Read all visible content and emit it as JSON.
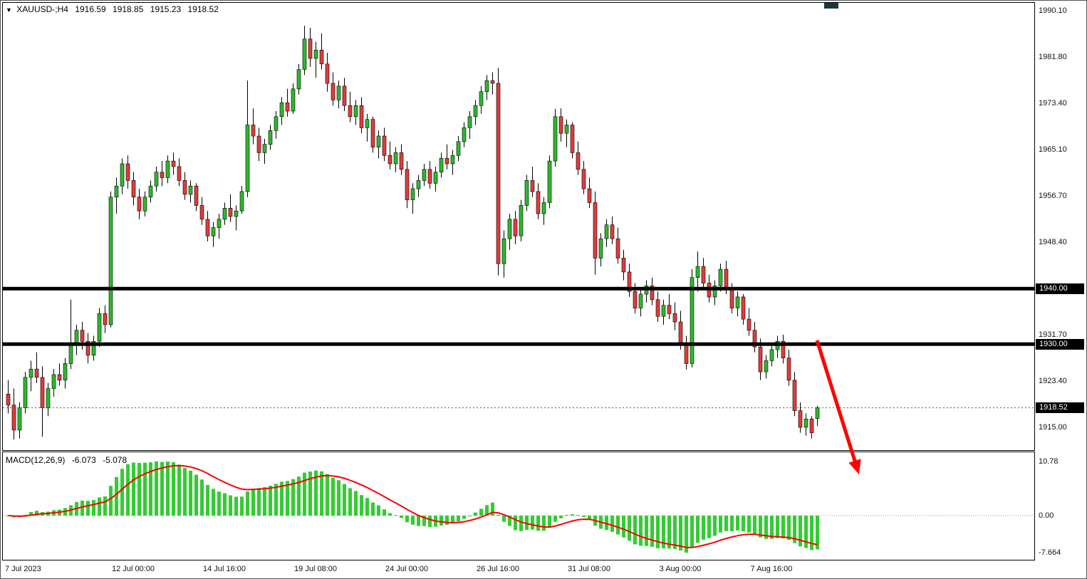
{
  "window": {
    "title_icon": "▼",
    "symbol_timeframe": "XAUUSD-;H4",
    "open": "1916.59",
    "high": "1918.85",
    "low": "1915.23",
    "close": "1918.52"
  },
  "colors": {
    "up": "#2eb82e",
    "down": "#e03c3c",
    "wick": "#000000",
    "level_line": "#000000",
    "macd_bar": "#33cc33",
    "macd_signal": "#ff0000",
    "arrow": "#ff0000",
    "tag_bg": "#000000",
    "tag_text": "#ffffff"
  },
  "y_axis": {
    "ticks": [
      "1990.10",
      "1981.80",
      "1973.40",
      "1965.10",
      "1956.70",
      "1948.40",
      "1931.70",
      "1923.40",
      "1915.00"
    ]
  },
  "price_tags": {
    "level1": "1940.00",
    "level2": "1930.00",
    "current": "1918.52"
  },
  "macd_panel": {
    "label": "MACD(12,26,9)",
    "value_main": "-6.073",
    "value_signal": "-5.078",
    "ticks": [
      "10.78",
      "0.00",
      "-7.664"
    ]
  },
  "chart_data": {
    "type": "candlestick",
    "symbol": "XAUUSD-",
    "timeframe": "H4",
    "title": "XAUUSD-;H4",
    "ohlc_current": {
      "open": 1916.59,
      "high": 1918.85,
      "low": 1915.23,
      "close": 1918.52
    },
    "y_range": {
      "top_tick": 1990.1,
      "bottom_tick": 1915.0
    },
    "horizontal_levels": [
      1940.0,
      1930.0
    ],
    "current_price": 1918.52,
    "x_tick_labels": [
      "7 Jul 2023",
      "12 Jul 00:00",
      "14 Jul 16:00",
      "19 Jul 08:00",
      "24 Jul 00:00",
      "26 Jul 16:00",
      "31 Jul 08:00",
      "3 Aug 00:00",
      "7 Aug 16:00"
    ],
    "candles": [
      [
        1921,
        1923.5,
        1917.5,
        1919
      ],
      [
        1919,
        1922,
        1912.8,
        1914.5
      ],
      [
        1914.5,
        1919.5,
        1913,
        1918.5
      ],
      [
        1918.5,
        1925,
        1917.5,
        1924
      ],
      [
        1924,
        1927,
        1921.5,
        1925.5
      ],
      [
        1925.5,
        1928.5,
        1923,
        1924
      ],
      [
        1924,
        1926,
        1913.3,
        1918.5
      ],
      [
        1918.5,
        1923,
        1917,
        1922
      ],
      [
        1922,
        1925.5,
        1920.5,
        1924.5
      ],
      [
        1924.5,
        1926.5,
        1922.5,
        1923.5
      ],
      [
        1923.5,
        1927.5,
        1922,
        1926.5
      ],
      [
        1926.5,
        1938,
        1925.5,
        1930
      ],
      [
        1930,
        1933.5,
        1928,
        1932.5
      ],
      [
        1932.5,
        1934,
        1929,
        1930.5
      ],
      [
        1930.5,
        1932,
        1926.5,
        1928
      ],
      [
        1928,
        1931.5,
        1927,
        1930.5
      ],
      [
        1930.5,
        1936.5,
        1929.5,
        1935.5
      ],
      [
        1935.5,
        1937,
        1932,
        1933.5
      ],
      [
        1933.5,
        1957.5,
        1933,
        1956.5
      ],
      [
        1956.5,
        1960,
        1953.5,
        1958.5
      ],
      [
        1958.5,
        1963.5,
        1957,
        1962.5
      ],
      [
        1962.5,
        1964,
        1958,
        1959.5
      ],
      [
        1959.5,
        1961,
        1955,
        1956.5
      ],
      [
        1956.5,
        1958,
        1952.5,
        1954
      ],
      [
        1954,
        1957.5,
        1953,
        1956.5
      ],
      [
        1956.5,
        1959.5,
        1955.5,
        1958.5
      ],
      [
        1958.5,
        1962,
        1957.5,
        1961
      ],
      [
        1961,
        1963,
        1958.5,
        1960
      ],
      [
        1960,
        1964,
        1959,
        1963
      ],
      [
        1963,
        1964.5,
        1960.5,
        1962
      ],
      [
        1962,
        1963.5,
        1958.5,
        1959.5
      ],
      [
        1959.5,
        1961,
        1956,
        1957
      ],
      [
        1957,
        1959.5,
        1955.5,
        1958.5
      ],
      [
        1958.5,
        1959,
        1954,
        1955
      ],
      [
        1955,
        1956.5,
        1951.5,
        1952.5
      ],
      [
        1952.5,
        1954,
        1948.5,
        1949.5
      ],
      [
        1949.5,
        1952,
        1947.5,
        1951
      ],
      [
        1951,
        1953.5,
        1949,
        1952.5
      ],
      [
        1952.5,
        1955.5,
        1951.5,
        1954.5
      ],
      [
        1954.5,
        1957,
        1952,
        1953
      ],
      [
        1953,
        1955,
        1950.5,
        1954
      ],
      [
        1954,
        1958.5,
        1953.5,
        1957.5
      ],
      [
        1957.5,
        1977.5,
        1956.5,
        1969.5
      ],
      [
        1969.5,
        1972.5,
        1966,
        1967.5
      ],
      [
        1967.5,
        1969,
        1963,
        1964.5
      ],
      [
        1964.5,
        1967,
        1962.5,
        1966
      ],
      [
        1966,
        1969.5,
        1965,
        1968.5
      ],
      [
        1968.5,
        1972,
        1967,
        1971
      ],
      [
        1971,
        1974.5,
        1969.5,
        1973.5
      ],
      [
        1973.5,
        1976,
        1971,
        1972
      ],
      [
        1972,
        1977,
        1971.5,
        1976
      ],
      [
        1976,
        1980.5,
        1975,
        1979.5
      ],
      [
        1979.5,
        1987.4,
        1978.5,
        1985
      ],
      [
        1985,
        1987,
        1980,
        1981.5
      ],
      [
        1981.5,
        1984.5,
        1978,
        1983
      ],
      [
        1983,
        1986,
        1979.5,
        1980.5
      ],
      [
        1980.5,
        1982.5,
        1975.5,
        1977
      ],
      [
        1977,
        1979,
        1973,
        1974
      ],
      [
        1974,
        1977.5,
        1972.5,
        1976.5
      ],
      [
        1976.5,
        1978,
        1972,
        1973
      ],
      [
        1973,
        1975.5,
        1970,
        1971
      ],
      [
        1971,
        1974,
        1969.5,
        1973
      ],
      [
        1973,
        1974.5,
        1968,
        1969
      ],
      [
        1969,
        1971.5,
        1966.5,
        1970.5
      ],
      [
        1970.5,
        1971,
        1964.5,
        1965.5
      ],
      [
        1965.5,
        1968.5,
        1963.5,
        1967.5
      ],
      [
        1967.5,
        1969,
        1963,
        1964
      ],
      [
        1964,
        1966.5,
        1961.5,
        1962.5
      ],
      [
        1962.5,
        1965.5,
        1961,
        1964.5
      ],
      [
        1964.5,
        1966,
        1960.5,
        1961.5
      ],
      [
        1961.5,
        1963,
        1954.5,
        1956
      ],
      [
        1956,
        1959,
        1953.5,
        1958
      ],
      [
        1958,
        1960.5,
        1956.5,
        1959.5
      ],
      [
        1959.5,
        1962.5,
        1958.5,
        1961.5
      ],
      [
        1961.5,
        1963,
        1958,
        1959
      ],
      [
        1959,
        1962,
        1957.5,
        1961
      ],
      [
        1961,
        1964.5,
        1960,
        1963.5
      ],
      [
        1963.5,
        1966,
        1961.5,
        1962.5
      ],
      [
        1962.5,
        1965,
        1960.5,
        1964
      ],
      [
        1964,
        1967.5,
        1963,
        1966.5
      ],
      [
        1966.5,
        1970,
        1965.5,
        1969
      ],
      [
        1969,
        1972,
        1967,
        1971
      ],
      [
        1971,
        1974,
        1969.5,
        1973
      ],
      [
        1973,
        1976.5,
        1971.5,
        1975.5
      ],
      [
        1975.5,
        1978.5,
        1974,
        1977.5
      ],
      [
        1977.5,
        1979,
        1975,
        1977
      ],
      [
        1977,
        1979.8,
        1942.4,
        1944.5
      ],
      [
        1944.5,
        1950.5,
        1942,
        1949
      ],
      [
        1949,
        1953.5,
        1947,
        1952.5
      ],
      [
        1952.5,
        1954,
        1948,
        1949.5
      ],
      [
        1949.5,
        1956,
        1948.5,
        1955
      ],
      [
        1955,
        1960.5,
        1954,
        1959.5
      ],
      [
        1959.5,
        1962,
        1956.5,
        1957.5
      ],
      [
        1957.5,
        1959,
        1952.5,
        1953.5
      ],
      [
        1953.5,
        1956.5,
        1951.5,
        1955.5
      ],
      [
        1955.5,
        1964,
        1954.5,
        1963
      ],
      [
        1963,
        1972.4,
        1962,
        1971
      ],
      [
        1971,
        1972.5,
        1966.5,
        1968
      ],
      [
        1968,
        1970.5,
        1965.5,
        1969.5
      ],
      [
        1969.5,
        1970,
        1963.5,
        1964.5
      ],
      [
        1964.5,
        1966.5,
        1960.5,
        1961.5
      ],
      [
        1961.5,
        1963,
        1957,
        1958
      ],
      [
        1958,
        1960,
        1954.5,
        1955.5
      ],
      [
        1955.5,
        1957.5,
        1942.5,
        1945.5
      ],
      [
        1945.5,
        1950,
        1944,
        1949
      ],
      [
        1949,
        1952.5,
        1947.5,
        1951.5
      ],
      [
        1951.5,
        1953,
        1948,
        1949
      ],
      [
        1949,
        1951,
        1944.5,
        1945.5
      ],
      [
        1945.5,
        1947,
        1941.5,
        1943
      ],
      [
        1943,
        1944.5,
        1938.5,
        1939.5
      ],
      [
        1939.5,
        1941,
        1935.5,
        1936.5
      ],
      [
        1936.5,
        1940,
        1935,
        1939
      ],
      [
        1939,
        1941.5,
        1937.5,
        1940.5
      ],
      [
        1940.5,
        1942,
        1937,
        1938
      ],
      [
        1938,
        1939.5,
        1934,
        1935
      ],
      [
        1935,
        1938,
        1933.5,
        1937
      ],
      [
        1937,
        1939,
        1934.5,
        1935.5
      ],
      [
        1935.5,
        1937.5,
        1932.5,
        1934
      ],
      [
        1934,
        1936,
        1929,
        1930
      ],
      [
        1930,
        1931.5,
        1925.4,
        1926.5
      ],
      [
        1926.5,
        1943.5,
        1925.8,
        1942
      ],
      [
        1942,
        1946.7,
        1939.5,
        1944
      ],
      [
        1944,
        1945.5,
        1940,
        1941
      ],
      [
        1941,
        1942.5,
        1937.5,
        1938.5
      ],
      [
        1938.5,
        1941.5,
        1937,
        1940.5
      ],
      [
        1940.5,
        1944.5,
        1939.5,
        1943.5
      ],
      [
        1943.5,
        1945,
        1939,
        1940
      ],
      [
        1940,
        1941,
        1935.5,
        1936.5
      ],
      [
        1936.5,
        1939.5,
        1935,
        1938.5
      ],
      [
        1938.5,
        1939,
        1933.5,
        1934.5
      ],
      [
        1934.5,
        1936.5,
        1931.5,
        1932.5
      ],
      [
        1932.5,
        1934,
        1928.5,
        1929.5
      ],
      [
        1929.5,
        1931,
        1923.5,
        1925
      ],
      [
        1925,
        1928,
        1923.8,
        1927
      ],
      [
        1927,
        1930,
        1926,
        1929
      ],
      [
        1929,
        1931.5,
        1927.5,
        1930.5
      ],
      [
        1930.5,
        1931.7,
        1926.5,
        1927.5
      ],
      [
        1927.5,
        1929,
        1922.5,
        1923.5
      ],
      [
        1923.5,
        1925,
        1917,
        1918
      ],
      [
        1918,
        1919.5,
        1914,
        1915
      ],
      [
        1915,
        1917.5,
        1913.5,
        1916.5
      ],
      [
        1916.5,
        1917,
        1913,
        1914
      ],
      [
        1916.59,
        1918.85,
        1915.23,
        1918.52
      ]
    ],
    "indicator": {
      "type": "macd_histogram_with_signal",
      "name": "MACD",
      "params": [
        12,
        26,
        9
      ],
      "current_macd": -6.073,
      "current_signal": -5.078,
      "axis_ticks": [
        10.78,
        0.0,
        -7.664
      ]
    },
    "annotation": {
      "type": "arrow",
      "direction": "down-right",
      "color": "#ff0000"
    }
  }
}
